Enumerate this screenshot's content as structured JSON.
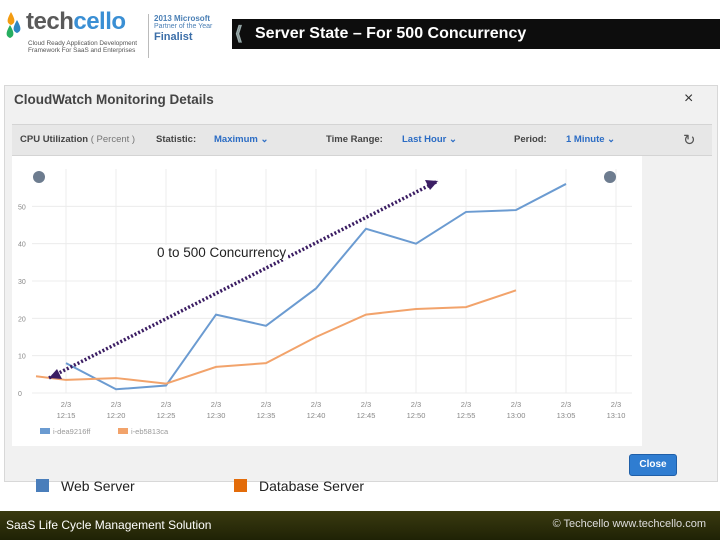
{
  "header": {
    "logo_tech": "tech",
    "logo_cello": "cello",
    "tagline_line1": "Cloud Ready Application Development",
    "tagline_line2": "Framework For SaaS and Enterprises",
    "award_year": "2013 Microsoft",
    "award_sub": "Partner of the Year",
    "award_final": "Finalist",
    "title": "Server State – For 500 Concurrency"
  },
  "dialog": {
    "title": "CloudWatch Monitoring Details",
    "close_x": "×",
    "controls": {
      "metric_label": "CPU Utilization",
      "metric_unit": "( Percent )",
      "statistic_label": "Statistic:",
      "statistic_value": "Maximum",
      "time_range_label": "Time Range:",
      "time_range_value": "Last Hour",
      "period_label": "Period:",
      "period_value": "1 Minute"
    },
    "close_button": "Close",
    "mini_legend": [
      "i-dea9216ff",
      "i-eb5813ca"
    ]
  },
  "chart_data": {
    "type": "line",
    "x": [
      "12:15",
      "12:20",
      "12:25",
      "12:30",
      "12:35",
      "12:40",
      "12:45",
      "12:50",
      "12:55",
      "13:00",
      "13:05",
      "13:10"
    ],
    "x_prefix": "2/3",
    "y_ticks": [
      0,
      10,
      20,
      30,
      40,
      50
    ],
    "ylim": [
      0,
      60
    ],
    "grid": true,
    "series": [
      {
        "color": "#6b9bd1",
        "x": [
          0,
          1,
          2,
          3,
          4,
          5,
          6,
          7,
          8,
          9,
          10
        ],
        "values": [
          8,
          1,
          2,
          21,
          18,
          28,
          44,
          40,
          48.5,
          49,
          56
        ]
      },
      {
        "color": "#f2a36b",
        "x": [
          -0.6,
          0,
          1,
          2,
          3,
          4,
          5,
          6,
          7,
          8,
          9
        ],
        "values": [
          4.5,
          3.5,
          4,
          2.5,
          7,
          8,
          15,
          21,
          22.5,
          23,
          27.5
        ]
      }
    ]
  },
  "annotation": "0 to 500 Concurrency",
  "legend": {
    "web": {
      "label": "Web Server",
      "color": "#4a7ebb"
    },
    "db": {
      "label": "Database Server",
      "color": "#e36c0a"
    }
  },
  "footer": {
    "left": "SaaS Life Cycle Management Solution",
    "right": "© Techcello www.techcello.com"
  }
}
